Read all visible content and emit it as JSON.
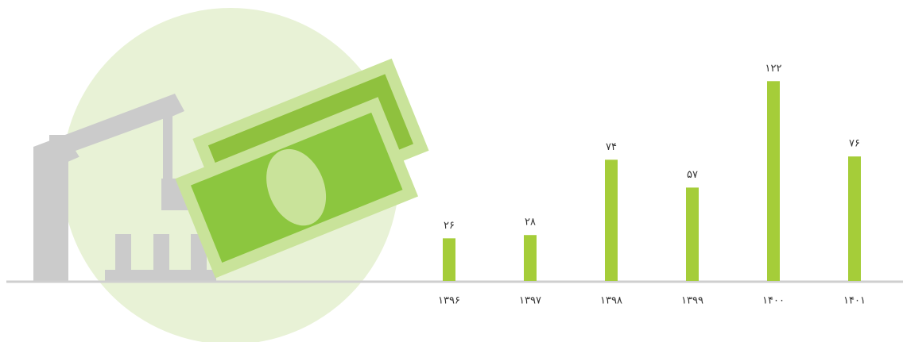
{
  "chart_data": {
    "type": "bar",
    "categories": [
      "۱۳۹۶",
      "۱۳۹۷",
      "۱۳۹۸",
      "۱۳۹۹",
      "۱۴۰۰",
      "۱۴۰۱"
    ],
    "values": [
      26,
      28,
      74,
      57,
      122,
      76
    ],
    "value_labels": [
      "۲۶",
      "۲۸",
      "۷۴",
      "۵۷",
      "۱۲۲",
      "۷۶"
    ],
    "color": "#a5cd39",
    "ylim": [
      0,
      150
    ]
  }
}
